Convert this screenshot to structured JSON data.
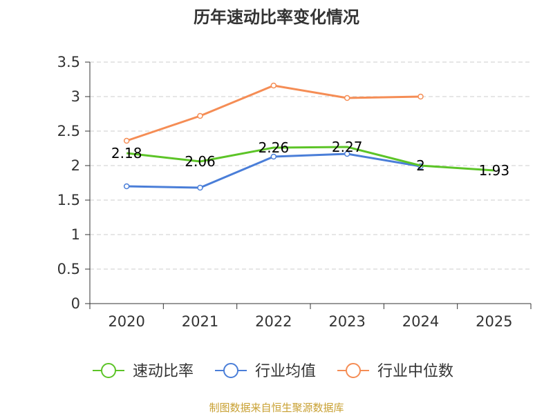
{
  "chart_data": {
    "type": "line",
    "title": "历年速动比率变化情况",
    "categories": [
      "2020",
      "2021",
      "2022",
      "2023",
      "2024",
      "2025"
    ],
    "y_ticks": [
      "0",
      "0.5",
      "1",
      "1.5",
      "2",
      "2.5",
      "3",
      "3.5"
    ],
    "ylim": [
      0,
      3.5
    ],
    "grid": true,
    "legend_position": "bottom",
    "series": [
      {
        "name": "速动比率",
        "color": "#5cc427",
        "values": [
          2.18,
          2.06,
          2.26,
          2.27,
          2.0,
          1.93
        ],
        "labels": [
          "2.18",
          "2.06",
          "2.26",
          "2.27",
          "2",
          "1.93"
        ]
      },
      {
        "name": "行业均值",
        "color": "#4a7ed8",
        "values": [
          1.7,
          1.68,
          2.13,
          2.17,
          1.99,
          null
        ]
      },
      {
        "name": "行业中位数",
        "color": "#f58d55",
        "values": [
          2.36,
          2.72,
          3.16,
          2.98,
          3.0,
          null
        ]
      }
    ]
  },
  "footer": "制图数据来自恒生聚源数据库"
}
